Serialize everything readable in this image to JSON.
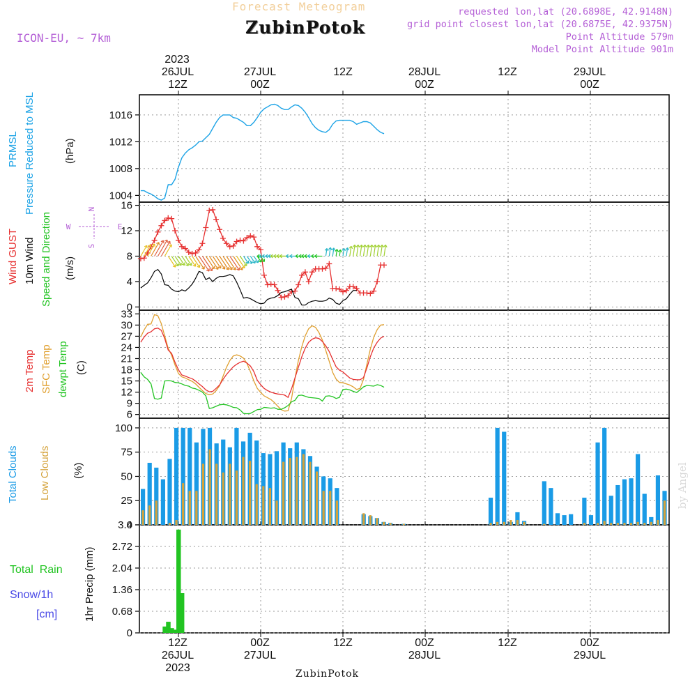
{
  "header": {
    "faint_title": "Forecast Meteogram",
    "station": "ZubinPotok",
    "model": "ICON-EU, ~ 7km",
    "requested": "requested lon,lat (20.6898E, 42.9148N)",
    "closest": "grid point closest lon,lat (20.6875E, 42.9375N)",
    "point_alt": "Point Altitude 579m",
    "model_alt": "Model Point Altitude 901m"
  },
  "top_axis": {
    "year": "2023",
    "ticks": [
      {
        "line1": "26JUL",
        "line2": "12Z"
      },
      {
        "line1": "27JUL",
        "line2": "00Z"
      },
      {
        "line1": "",
        "line2": "12Z"
      },
      {
        "line1": "28JUL",
        "line2": "00Z"
      },
      {
        "line1": "",
        "line2": "12Z"
      },
      {
        "line1": "29JUL",
        "line2": "00Z"
      }
    ]
  },
  "bottom_axis": {
    "year": "2023",
    "ticks": [
      {
        "line1": "12Z",
        "line2": "26JUL"
      },
      {
        "line1": "00Z",
        "line2": "27JUL"
      },
      {
        "line1": "12Z",
        "line2": ""
      },
      {
        "line1": "00Z",
        "line2": "28JUL"
      },
      {
        "line1": "12Z",
        "line2": ""
      },
      {
        "line1": "00Z",
        "line2": "29JUL"
      }
    ],
    "footer": "ZubinPotok"
  },
  "panel_labels": {
    "pressure": {
      "a": "PRMSL",
      "b": "Pressure Reduced to MSL",
      "unit": "(hPa)"
    },
    "wind": {
      "a": "Wind GUST",
      "b": "10m Wind",
      "c": "Speed and Direction",
      "unit": "(m/s)",
      "compass_ns": "N",
      "compass_s": "S",
      "compass_w": "W",
      "compass_e": "E"
    },
    "temp": {
      "a": "2m Temp",
      "b": "SFC Temp",
      "c": "dewpt Temp",
      "unit": "(C)"
    },
    "clouds": {
      "a": "Total Clouds",
      "b": "Low Clouds",
      "unit": "(%)"
    },
    "precip": {
      "a": "Total  Rain",
      "b": "Snow/1h",
      "c": "[cm]",
      "unit": "1hr Precip (mm)"
    }
  },
  "watermark": "by Angel",
  "colors": {
    "pressure": "#1ca3e6",
    "gust": "#e63030",
    "wind": "#000000",
    "t2m": "#e63030",
    "tsfc": "#e0a030",
    "dewpt": "#22c422",
    "total_cloud": "#1a9be6",
    "low_cloud": "#d4a23a",
    "rain": "#22c422",
    "purple": "#b45fd6",
    "snow": "#4a4ae6"
  },
  "chart_data": [
    {
      "type": "line",
      "title": "PRMSL Pressure Reduced to MSL",
      "ylabel": "(hPa)",
      "ylim": [
        1003,
        1019
      ],
      "yticks": [
        "1004",
        "1008",
        "1012",
        "1016"
      ],
      "x_hours_from_start": true,
      "series": [
        {
          "name": "PRMSL",
          "values": [
            1004.7,
            1004.7,
            1004.4,
            1004.2,
            1003.9,
            1003.5,
            1003.3,
            1003.6,
            1005.6,
            1005.6,
            1006.4,
            1008.2,
            1009.6,
            1010.3,
            1010.8,
            1011.1,
            1011.5,
            1012.0,
            1012.1,
            1012.6,
            1013.1,
            1014.0,
            1014.9,
            1015.6,
            1016.0,
            1016.0,
            1016.0,
            1015.6,
            1015.5,
            1015.2,
            1014.9,
            1014.4,
            1014.4,
            1014.9,
            1015.6,
            1016.4,
            1016.9,
            1017.2,
            1017.5,
            1017.6,
            1017.4,
            1017.0,
            1016.8,
            1016.8,
            1017.2,
            1017.5,
            1017.4,
            1017.0,
            1016.4,
            1015.6,
            1014.7,
            1014.1,
            1013.7,
            1013.5,
            1013.4,
            1013.8,
            1014.6,
            1015.1,
            1015.2,
            1015.2,
            1015.2,
            1015.2,
            1015.0,
            1014.6,
            1014.8,
            1015.0,
            1015.0,
            1014.8,
            1014.3,
            1013.8,
            1013.4,
            1013.2
          ]
        }
      ]
    },
    {
      "type": "line",
      "title": "Wind GUST / 10m Wind Speed and Direction",
      "ylabel": "(m/s)",
      "ylim": [
        -0.5,
        16.5
      ],
      "yticks": [
        "0",
        "4",
        "8",
        "12",
        "16"
      ],
      "series": [
        {
          "name": "Wind GUST",
          "values": [
            7.6,
            7.7,
            8.5,
            9.5,
            10.5,
            11.8,
            12.8,
            13.6,
            14.0,
            13.9,
            12.0,
            10.5,
            9.5,
            9.2,
            8.6,
            8.4,
            8.5,
            9.0,
            10.0,
            12.5,
            15.2,
            15.3,
            13.8,
            12.2,
            10.8,
            10.0,
            9.5,
            9.6,
            10.3,
            10.5,
            10.4,
            10.9,
            11.2,
            11.0,
            9.5,
            9.0,
            5.0,
            3.5,
            3.6,
            3.5,
            2.6,
            1.5,
            1.6,
            1.8,
            2.4,
            2.5,
            3.5,
            5.0,
            5.5,
            4.0,
            5.5,
            6.0,
            6.0,
            6.0,
            6.1,
            6.8,
            2.9,
            2.9,
            2.8,
            2.4,
            2.6,
            3.2,
            3.2,
            2.9,
            2.2,
            2.2,
            2.2,
            2.1,
            2.5,
            4.0,
            6.6,
            6.6
          ]
        },
        {
          "name": "10m Wind",
          "values": [
            3.0,
            3.4,
            3.8,
            4.6,
            5.6,
            5.9,
            5.2,
            3.5,
            3.4,
            2.8,
            2.5,
            2.4,
            2.7,
            2.5,
            3.0,
            3.6,
            4.5,
            5.6,
            5.4,
            4.3,
            4.6,
            4.0,
            4.5,
            4.8,
            4.8,
            4.9,
            5.1,
            4.9,
            3.9,
            2.7,
            1.4,
            1.5,
            1.3,
            1.0,
            0.7,
            0.5,
            0.6,
            1.2,
            1.4,
            1.5,
            1.8,
            2.3,
            2.4,
            2.6,
            2.8,
            1.5,
            1.3,
            0.3,
            0.3,
            0.7,
            0.9,
            1.0,
            0.9,
            0.9,
            1.0,
            1.4,
            1.2,
            0.6,
            0.4,
            1.0,
            1.3,
            2.0,
            2.6,
            2.6
          ]
        }
      ]
    },
    {
      "type": "line",
      "title": "2m Temp / SFC Temp / dewpt Temp",
      "ylabel": "(C)",
      "ylim": [
        5,
        34
      ],
      "yticks": [
        "6",
        "9",
        "12",
        "15",
        "18",
        "21",
        "24",
        "27",
        "30",
        "33"
      ],
      "series": [
        {
          "name": "2m Temp",
          "values": [
            25.4,
            26.8,
            27.8,
            28.2,
            29.0,
            29.2,
            28.6,
            26.4,
            23.3,
            22.4,
            20.0,
            18.0,
            16.6,
            16.3,
            15.9,
            15.6,
            15.0,
            14.2,
            13.5,
            12.6,
            12.1,
            12.2,
            13.0,
            13.9,
            15.4,
            16.7,
            17.8,
            18.8,
            19.5,
            20.0,
            20.3,
            19.8,
            19.0,
            17.5,
            15.2,
            14.0,
            13.0,
            12.4,
            12.0,
            11.7,
            11.5,
            11.4,
            11.2,
            10.6,
            12.9,
            15.8,
            18.7,
            21.5,
            23.8,
            25.4,
            26.2,
            26.6,
            26.4,
            25.6,
            24.4,
            22.9,
            20.8,
            18.8,
            17.9,
            17.4,
            16.6,
            15.8,
            15.4,
            15.3,
            15.3,
            15.9,
            18.5,
            21.5,
            23.9,
            25.4,
            26.5,
            27.0
          ]
        },
        {
          "name": "SFC Temp",
          "values": [
            26.8,
            28.7,
            30.2,
            30.3,
            32.8,
            32.5,
            30.4,
            27.1,
            23.8,
            21.9,
            19.3,
            17.0,
            16.1,
            15.8,
            15.3,
            14.9,
            14.2,
            13.3,
            12.4,
            11.6,
            11.3,
            11.5,
            12.4,
            13.7,
            16.2,
            18.6,
            20.5,
            21.7,
            22.0,
            21.7,
            21.1,
            19.7,
            17.5,
            15.0,
            13.0,
            11.9,
            11.0,
            10.5,
            10.0,
            9.2,
            8.2,
            7.3,
            6.9,
            7.0,
            10.3,
            15.7,
            20.5,
            24.2,
            27.1,
            29.0,
            29.8,
            29.4,
            28.0,
            26.0,
            23.2,
            20.3,
            17.3,
            15.5,
            14.6,
            14.5,
            14.2,
            13.9,
            13.4,
            12.7,
            13.0,
            15.4,
            19.5,
            23.5,
            26.8,
            28.8,
            30.0,
            30.1
          ]
        },
        {
          "name": "dewpt Temp",
          "values": [
            17.3,
            16.1,
            15.4,
            14.2,
            10.3,
            10.1,
            10.4,
            15.0,
            15.1,
            15.0,
            14.6,
            14.5,
            14.2,
            13.8,
            13.6,
            13.1,
            12.9,
            12.5,
            12.0,
            11.0,
            7.6,
            7.8,
            8.2,
            8.6,
            8.7,
            8.6,
            8.3,
            7.9,
            7.8,
            7.2,
            6.3,
            6.2,
            6.3,
            6.8,
            7.3,
            7.4,
            7.9,
            7.8,
            7.7,
            7.8,
            7.4,
            7.4,
            7.8,
            8.4,
            9.4,
            9.8,
            11.1,
            11.2,
            10.9,
            10.6,
            10.5,
            10.4,
            10.3,
            9.6,
            10.9,
            11.0,
            10.8,
            10.3,
            10.6,
            12.7,
            12.8,
            12.6,
            12.2,
            11.9,
            12.6,
            13.4,
            13.8,
            13.7,
            13.6,
            14.0,
            13.8,
            13.3
          ]
        }
      ]
    },
    {
      "type": "bar",
      "title": "Total Clouds / Low Clouds",
      "ylabel": "(%)",
      "ylim": [
        0,
        110
      ],
      "yticks": [
        "0",
        "25",
        "50",
        "75",
        "100"
      ],
      "series": [
        {
          "name": "Total Clouds",
          "values": [
            37,
            64,
            59,
            47,
            68,
            100,
            100,
            100,
            85,
            99,
            100,
            84,
            88,
            80,
            100,
            86,
            95,
            87,
            74,
            73,
            76,
            85,
            79,
            85,
            78,
            71,
            60,
            50,
            48,
            38,
            0,
            0,
            0,
            11,
            9,
            7,
            3,
            2,
            0,
            1,
            0,
            0,
            0,
            0,
            0,
            0,
            0,
            0,
            0,
            0,
            0,
            0,
            28,
            100,
            96,
            3,
            13,
            4,
            0,
            0,
            45,
            38,
            12,
            10,
            11,
            0,
            28,
            10,
            85,
            100,
            30,
            41,
            47,
            48,
            73,
            32,
            8,
            51,
            35
          ]
        },
        {
          "name": "Low Clouds",
          "values": [
            15,
            20,
            25,
            0,
            2,
            5,
            43,
            35,
            35,
            63,
            78,
            63,
            54,
            63,
            56,
            70,
            66,
            42,
            40,
            38,
            25,
            65,
            69,
            70,
            73,
            65,
            55,
            35,
            35,
            25,
            0,
            0,
            0,
            12,
            10,
            7,
            3,
            2,
            0,
            1,
            0,
            0,
            0,
            0,
            0,
            0,
            0,
            0,
            0,
            0,
            0,
            0,
            2,
            3,
            3,
            5,
            5,
            3,
            0,
            0,
            1,
            0,
            0,
            0,
            0,
            0,
            2,
            0,
            2,
            4,
            2,
            2,
            2,
            2,
            3,
            2,
            3,
            5,
            25
          ]
        }
      ]
    },
    {
      "type": "bar",
      "title": "1hr Precip (mm)",
      "ylabel": "1hr Precip (mm)",
      "ylim": [
        0,
        3.4
      ],
      "yticks": [
        "0",
        "0.68",
        "1.36",
        "2.04",
        "2.72",
        "3.4"
      ],
      "series": [
        {
          "name": "Total Rain",
          "values": [
            0,
            0,
            0,
            0,
            0,
            0,
            0,
            0.2,
            0.35,
            0.15,
            0.1,
            3.25,
            1.25,
            0,
            0,
            0,
            0,
            0,
            0,
            0,
            0,
            0,
            0,
            0,
            0,
            0,
            0,
            0,
            0,
            0,
            0,
            0,
            0,
            0,
            0,
            0,
            0,
            0,
            0,
            0,
            0,
            0,
            0,
            0,
            0,
            0,
            0,
            0,
            0,
            0,
            0,
            0,
            0,
            0,
            0,
            0,
            0,
            0,
            0,
            0,
            0,
            0,
            0,
            0,
            0,
            0,
            0,
            0,
            0,
            0,
            0,
            0
          ]
        }
      ]
    }
  ]
}
